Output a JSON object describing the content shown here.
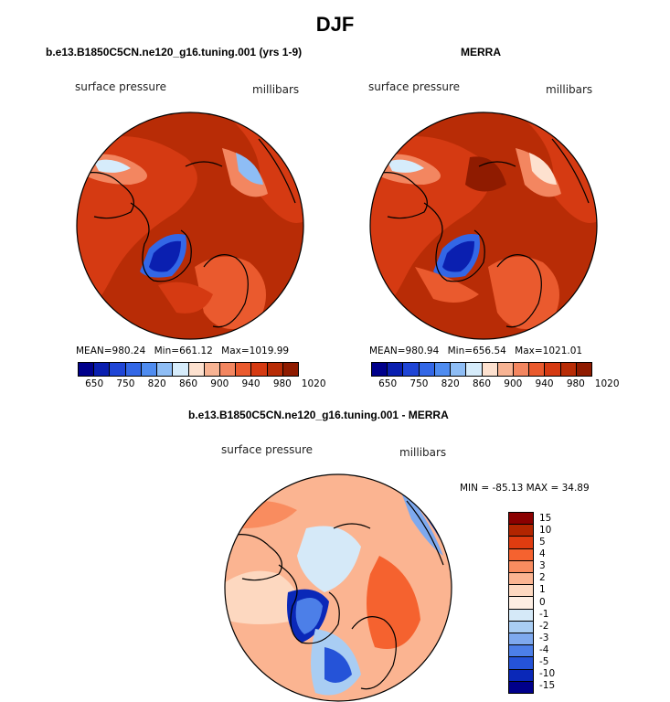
{
  "figure_title": "DJF",
  "panels": [
    {
      "subtitle": "b.e13.B1850C5CN.ne120_g16.tuning.001 (yrs 1-9)",
      "left_label": "surface pressure",
      "right_label": "millibars",
      "stats": {
        "mean_label": "MEAN=",
        "mean": "980.24",
        "min_label": "Min=",
        "min": "661.12",
        "max_label": "Max=",
        "max": "1019.99"
      }
    },
    {
      "subtitle": "MERRA",
      "left_label": "surface pressure",
      "right_label": "millibars",
      "stats": {
        "mean_label": "MEAN=",
        "mean": "980.94",
        "min_label": "Min=",
        "min": "656.54",
        "max_label": "Max=",
        "max": "1021.01"
      }
    },
    {
      "subtitle": "b.e13.B1850C5CN.ne120_g16.tuning.001 - MERRA",
      "left_label": "surface pressure",
      "right_label": "millibars",
      "stats_text": "MIN = -85.13 MAX =  34.89"
    }
  ],
  "colors": {
    "abs_scale": [
      "#00008b",
      "#0a1fb0",
      "#1f45d6",
      "#3367e6",
      "#4f8cf0",
      "#8ebdf5",
      "#d6ecfb",
      "#fde1cf",
      "#f7b393",
      "#f38660",
      "#ea5a2e",
      "#d53a12",
      "#b82c06",
      "#8f1b00"
    ],
    "diff_scale": [
      "#8b0000",
      "#b22500",
      "#e03c10",
      "#f5622f",
      "#f98c5f",
      "#fbb491",
      "#fdd8c0",
      "#fdeee3",
      "#d5e9f8",
      "#a9cdf3",
      "#7ea9ee",
      "#4c7fe8",
      "#2553d8",
      "#0a28b8",
      "#00008b"
    ],
    "land_outline": "#000000"
  },
  "chart_data": [
    {
      "type": "heatmap",
      "projection": "north-polar-stereographic",
      "title": "b.e13.B1850C5CN.ne120_g16.tuning.001 (yrs 1-9)",
      "variable": "surface pressure",
      "units": "millibars",
      "colorbar_ticks": [
        "650",
        "750",
        "820",
        "860",
        "900",
        "940",
        "980",
        "1020"
      ],
      "mean": 980.24,
      "min": 661.12,
      "max": 1019.99
    },
    {
      "type": "heatmap",
      "projection": "north-polar-stereographic",
      "title": "MERRA",
      "variable": "surface pressure",
      "units": "millibars",
      "colorbar_ticks": [
        "650",
        "750",
        "820",
        "860",
        "900",
        "940",
        "980",
        "1020"
      ],
      "mean": 980.94,
      "min": 656.54,
      "max": 1021.01
    },
    {
      "type": "heatmap",
      "projection": "north-polar-stereographic",
      "title": "b.e13.B1850C5CN.ne120_g16.tuning.001 - MERRA",
      "variable": "surface pressure",
      "units": "millibars",
      "colorbar_ticks": [
        "15",
        "10",
        "5",
        "4",
        "3",
        "2",
        "1",
        "0",
        "-1",
        "-2",
        "-3",
        "-4",
        "-5",
        "-10",
        "-15"
      ],
      "min": -85.13,
      "max": 34.89
    }
  ]
}
